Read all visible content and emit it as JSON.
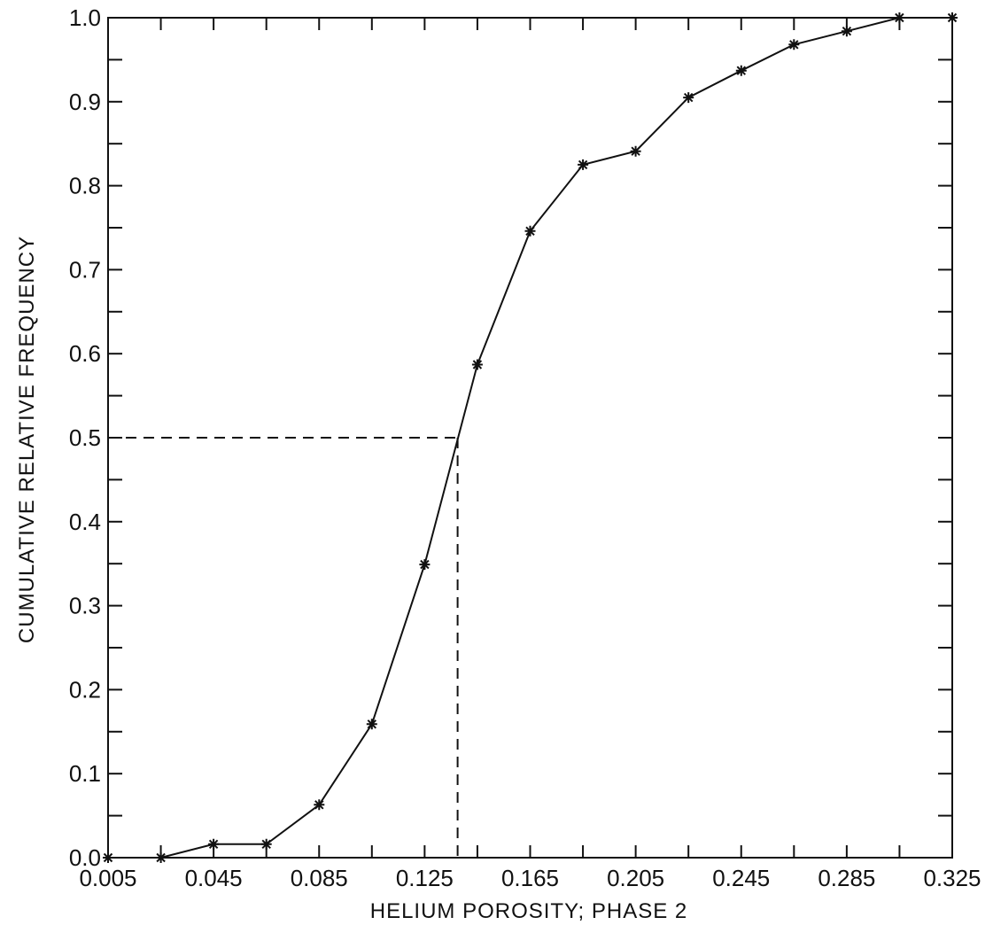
{
  "chart_data": {
    "type": "line",
    "title": "",
    "xlabel": "HELIUM POROSITY; PHASE 2",
    "ylabel": "CUMULATIVE RELATIVE FREQUENCY",
    "xlim": [
      0.005,
      0.325
    ],
    "ylim": [
      0.0,
      1.0
    ],
    "x_tick_labels": [
      "0.005",
      "0.045",
      "0.085",
      "0.125",
      "0.165",
      "0.205",
      "0.245",
      "0.285",
      "0.325"
    ],
    "x_ticks": [
      0.005,
      0.045,
      0.085,
      0.125,
      0.165,
      0.205,
      0.245,
      0.285,
      0.325
    ],
    "y_tick_labels": [
      "0.0",
      "0.1",
      "0.2",
      "0.3",
      "0.4",
      "0.5",
      "0.6",
      "0.7",
      "0.8",
      "0.9",
      "1.0"
    ],
    "y_ticks": [
      0.0,
      0.1,
      0.2,
      0.3,
      0.4,
      0.5,
      0.6,
      0.7,
      0.8,
      0.9,
      1.0
    ],
    "grid": false,
    "marker": "asterisk",
    "series": [
      {
        "x": [
          0.005,
          0.025,
          0.045,
          0.065,
          0.085,
          0.105,
          0.125,
          0.145,
          0.165,
          0.185,
          0.205,
          0.225,
          0.245,
          0.265,
          0.285,
          0.305,
          0.325
        ],
        "y": [
          0.0,
          0.0,
          0.016,
          0.016,
          0.063,
          0.159,
          0.349,
          0.587,
          0.746,
          0.825,
          0.841,
          0.905,
          0.937,
          0.968,
          0.984,
          1.0,
          1.0
        ]
      }
    ],
    "median_guide": {
      "x": 0.1375,
      "y": 0.5,
      "style": "dashed"
    }
  }
}
